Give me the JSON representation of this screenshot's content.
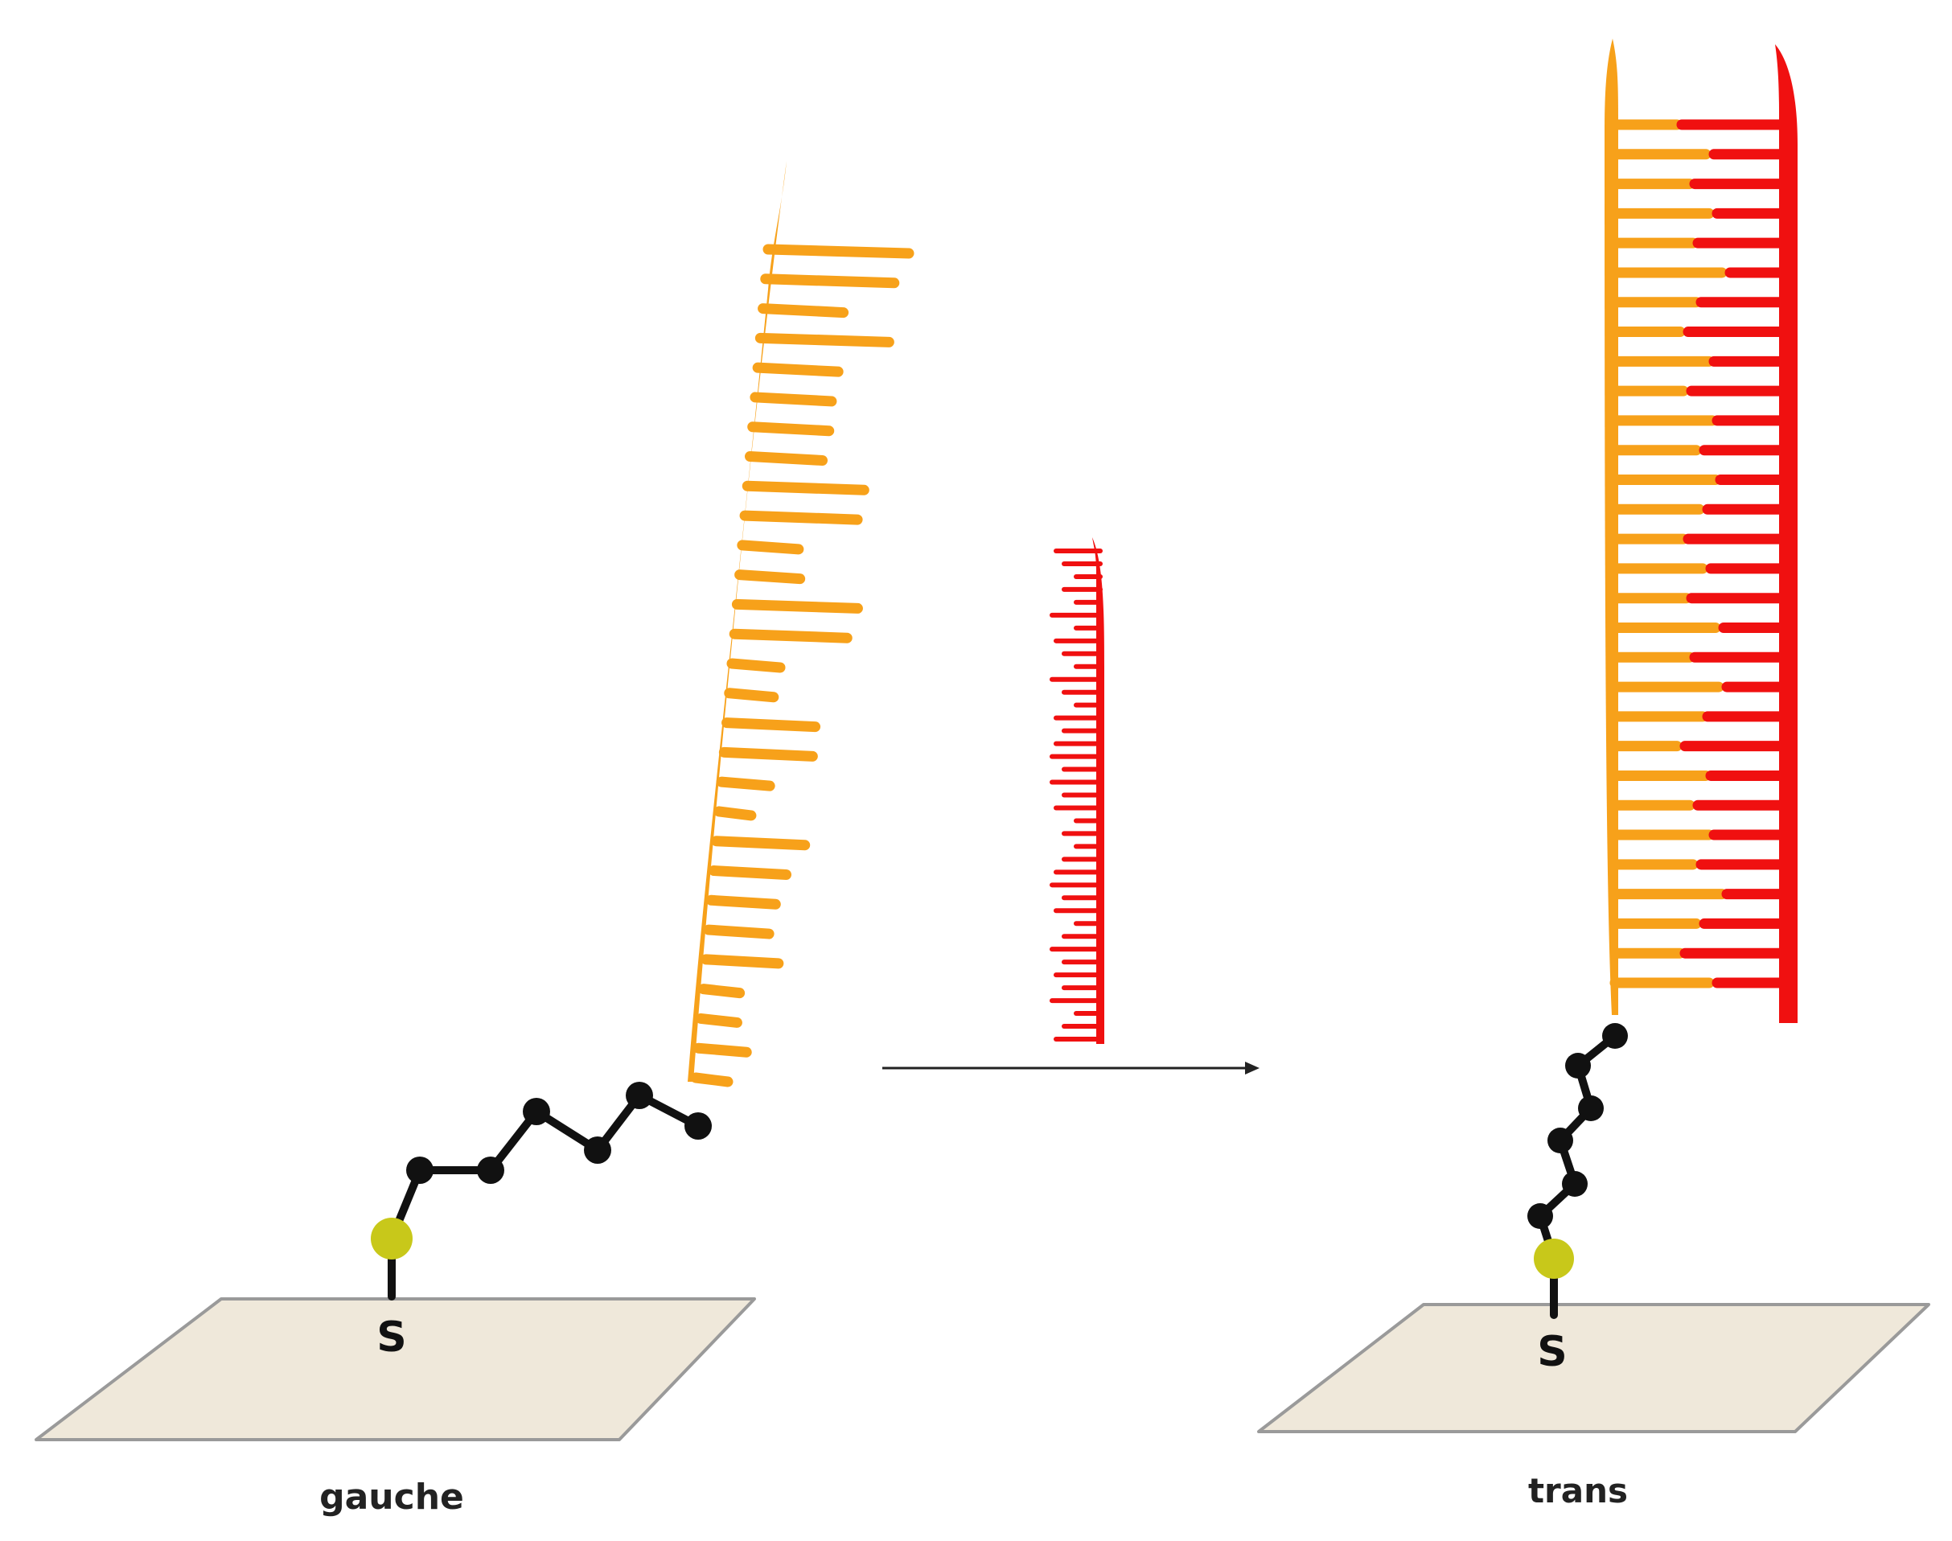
{
  "captions": {
    "left": "gauche",
    "right": "trans"
  },
  "atoms": {
    "sulfur_left": "S",
    "sulfur_right": "S"
  },
  "colors": {
    "probe_strand": "#f7a11a",
    "target_strand": "#f01010",
    "surface": "#efe8da",
    "surface_edge": "#9a9a9a",
    "linker": "#111111",
    "anchor_atom": "#c8c81a",
    "arrow": "#222222"
  },
  "icons": {
    "arrow": "right-arrow-icon"
  }
}
